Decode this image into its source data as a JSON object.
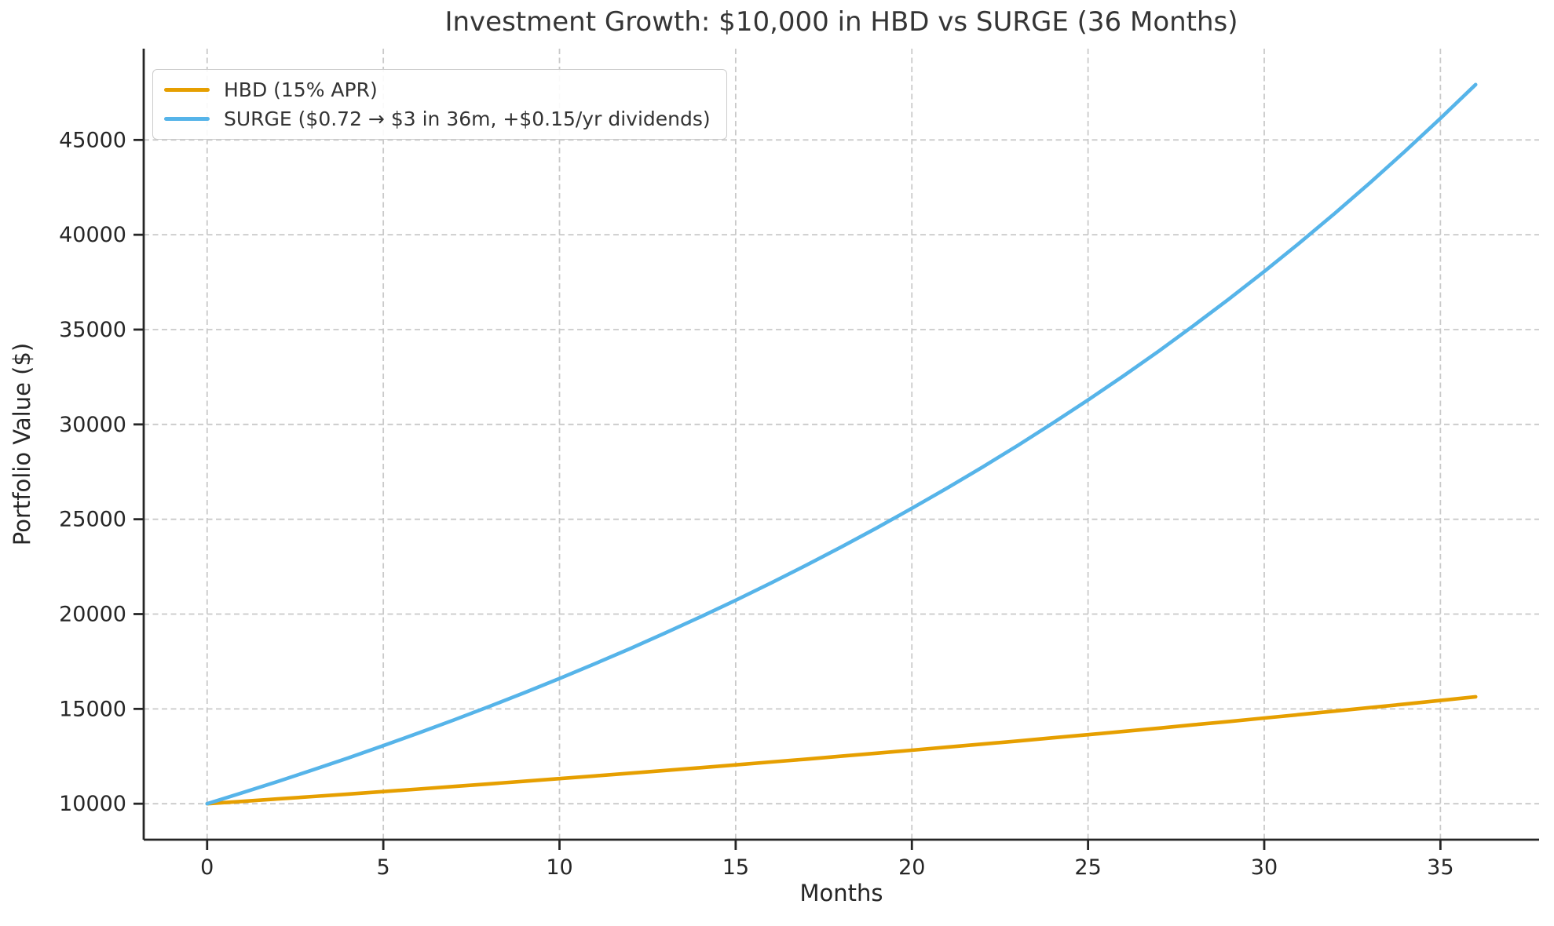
{
  "figure": {
    "title": "Investment Growth: $10,000 in HBD vs SURGE (36 Months)",
    "xlabel": "Months",
    "ylabel": "Portfolio Value ($)"
  },
  "legend": {
    "position": "upper-left",
    "items": [
      {
        "label": "HBD (15% APR)",
        "color": "#E69F00"
      },
      {
        "label": "SURGE ($0.72 → $3 in 36m, +$0.15/yr dividends)",
        "color": "#56B4E9"
      }
    ]
  },
  "chart_data": {
    "type": "line",
    "title": "Investment Growth: $10,000 in HBD vs SURGE (36 Months)",
    "xlabel": "Months",
    "ylabel": "Portfolio Value ($)",
    "xlim": [
      -1.8,
      37.8
    ],
    "ylim": [
      8104,
      49813
    ],
    "x_ticks": [
      0,
      5,
      10,
      15,
      20,
      25,
      30,
      35
    ],
    "y_ticks": [
      10000,
      15000,
      20000,
      25000,
      30000,
      35000,
      40000,
      45000
    ],
    "grid": true,
    "grid_style": "dashed",
    "legend_position": "upper left",
    "x": [
      0,
      1,
      2,
      3,
      4,
      5,
      6,
      7,
      8,
      9,
      10,
      11,
      12,
      13,
      14,
      15,
      16,
      17,
      18,
      19,
      20,
      21,
      22,
      23,
      24,
      25,
      26,
      27,
      28,
      29,
      30,
      31,
      32,
      33,
      34,
      35,
      36
    ],
    "series": [
      {
        "id": "hbd",
        "name": "HBD (15% APR)",
        "color": "#E69F00",
        "values": [
          10000,
          10125,
          10252,
          10380,
          10509,
          10641,
          10774,
          10908,
          11045,
          11183,
          11323,
          11464,
          11608,
          11753,
          11900,
          12048,
          12199,
          12351,
          12506,
          12662,
          12820,
          12981,
          13143,
          13307,
          13474,
          13642,
          13812,
          13985,
          14160,
          14337,
          14516,
          14698,
          14881,
          15067,
          15256,
          15446,
          15639
        ]
      },
      {
        "id": "surge",
        "name": "SURGE ($0.72 → $3 in 36m, +$0.15/yr dividends)",
        "color": "#56B4E9",
        "values": [
          10000,
          10578,
          11172,
          11784,
          12413,
          13061,
          13727,
          14414,
          15122,
          15851,
          16602,
          17377,
          18177,
          19001,
          19852,
          20730,
          21637,
          22574,
          23541,
          24540,
          25573,
          26641,
          27744,
          28886,
          30066,
          31288,
          32551,
          33859,
          35213,
          36614,
          38065,
          39567,
          41124,
          42736,
          44407,
          46138,
          47917
        ]
      }
    ]
  }
}
